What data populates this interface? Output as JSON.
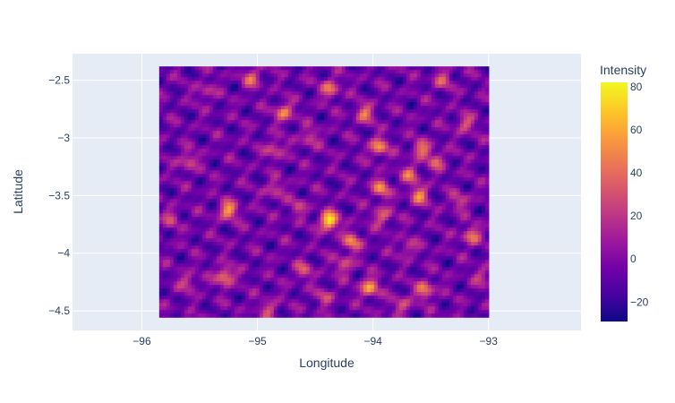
{
  "chart_data": {
    "type": "heatmap",
    "title": "",
    "xlabel": "Longitude",
    "ylabel": "Latitude",
    "xlim": [
      -96.6,
      -92.2
    ],
    "ylim": [
      -4.67,
      -2.27
    ],
    "x_ticks": [
      -96,
      -95,
      -94,
      -93
    ],
    "x_tick_labels": [
      "−96",
      "−95",
      "−94",
      "−93"
    ],
    "y_ticks": [
      -2.5,
      -3,
      -3.5,
      -4,
      -4.5
    ],
    "y_tick_labels": [
      "−2.5",
      "−3",
      "−3.5",
      "−4",
      "−4.5"
    ],
    "data_extent": {
      "lon": [
        -95.85,
        -93.0
      ],
      "lat": [
        -4.53,
        -2.38
      ]
    },
    "grid": true,
    "plot_bgcolor": "#e5ecf6",
    "colorbar": {
      "title": "Intensity",
      "range": [
        -29,
        82
      ],
      "ticks": [
        80,
        60,
        40,
        20,
        0,
        -20
      ],
      "tick_labels": [
        "80",
        "60",
        "40",
        "20",
        "0",
        "−20"
      ],
      "colorscale": [
        "#0d0887",
        "#46039f",
        "#7201a8",
        "#9c179e",
        "#bd3786",
        "#d8576b",
        "#ed7953",
        "#fb9f3a",
        "#fdca26",
        "#f0f921"
      ]
    },
    "background_level": -5,
    "peaks": [
      {
        "lon": -94.38,
        "lat": -3.72,
        "value": 80
      },
      {
        "lon": -95.25,
        "lat": -3.63,
        "value": 55
      },
      {
        "lon": -95.28,
        "lat": -4.2,
        "value": 50
      },
      {
        "lon": -94.03,
        "lat": -4.3,
        "value": 55
      },
      {
        "lon": -93.95,
        "lat": -3.08,
        "value": 50
      },
      {
        "lon": -94.77,
        "lat": -2.78,
        "value": 45
      },
      {
        "lon": -94.07,
        "lat": -2.79,
        "value": 40
      },
      {
        "lon": -94.18,
        "lat": -3.9,
        "value": 45
      },
      {
        "lon": -93.93,
        "lat": -3.44,
        "value": 45
      },
      {
        "lon": -93.6,
        "lat": -3.5,
        "value": 45
      },
      {
        "lon": -93.58,
        "lat": -3.1,
        "value": 40
      },
      {
        "lon": -93.55,
        "lat": -4.32,
        "value": 45
      },
      {
        "lon": -93.15,
        "lat": -3.85,
        "value": 40
      },
      {
        "lon": -94.37,
        "lat": -2.57,
        "value": 40
      },
      {
        "lon": -95.05,
        "lat": -2.48,
        "value": 35
      },
      {
        "lon": -95.6,
        "lat": -3.2,
        "value": 30
      },
      {
        "lon": -94.85,
        "lat": -3.1,
        "value": 30
      },
      {
        "lon": -93.45,
        "lat": -3.2,
        "value": 30
      },
      {
        "lon": -93.2,
        "lat": -2.88,
        "value": 30
      },
      {
        "lon": -94.25,
        "lat": -4.1,
        "value": 30
      },
      {
        "lon": -93.75,
        "lat": -4.45,
        "value": 28
      },
      {
        "lon": -95.6,
        "lat": -4.25,
        "value": 25
      },
      {
        "lon": -94.6,
        "lat": -4.15,
        "value": 28
      },
      {
        "lon": -93.68,
        "lat": -3.32,
        "value": 35
      },
      {
        "lon": -93.92,
        "lat": -3.68,
        "value": 35
      },
      {
        "lon": -93.25,
        "lat": -3.55,
        "value": 25
      },
      {
        "lon": -94.9,
        "lat": -4.48,
        "value": 25
      },
      {
        "lon": -93.4,
        "lat": -2.5,
        "value": 28
      },
      {
        "lon": -95.45,
        "lat": -2.6,
        "value": 20
      },
      {
        "lon": -94.55,
        "lat": -3.0,
        "value": 25
      },
      {
        "lon": -94.85,
        "lat": -3.45,
        "value": 25
      },
      {
        "lon": -95.75,
        "lat": -3.7,
        "value": 20
      },
      {
        "lon": -94.42,
        "lat": -4.38,
        "value": 22
      },
      {
        "lon": -93.05,
        "lat": -4.2,
        "value": 20
      },
      {
        "lon": -94.65,
        "lat": -3.6,
        "value": 20
      },
      {
        "lon": -93.7,
        "lat": -3.95,
        "value": 22
      }
    ]
  }
}
